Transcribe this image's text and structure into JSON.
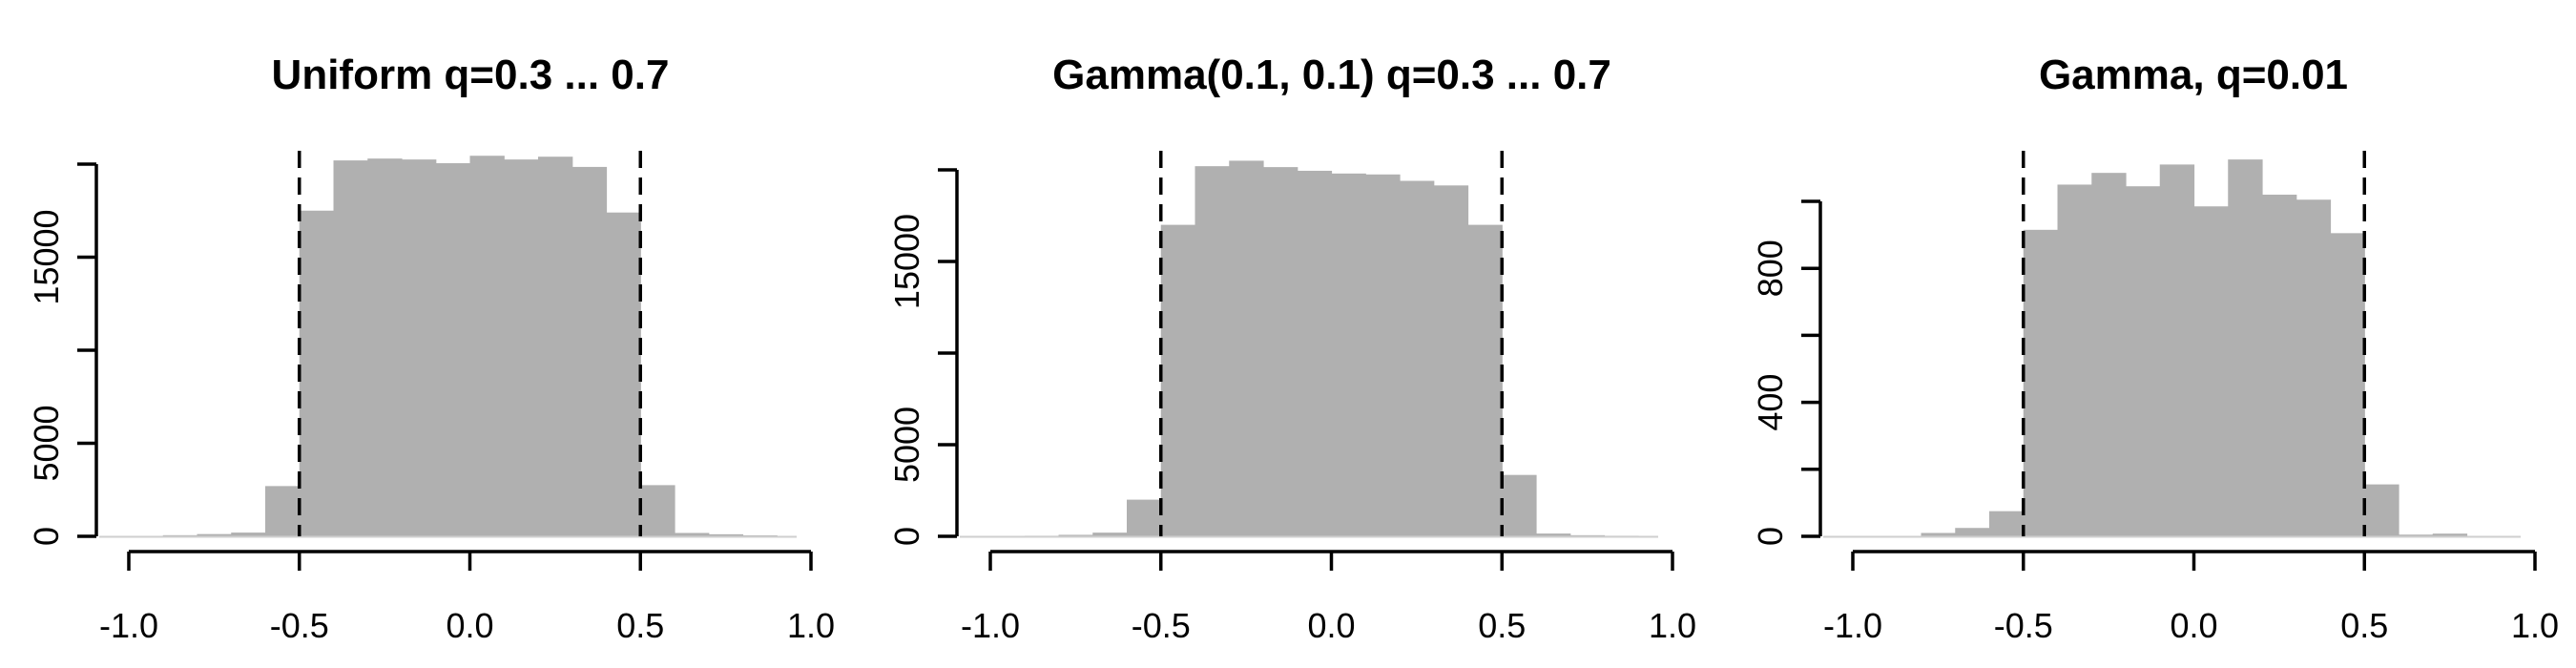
{
  "chart_data": [
    {
      "type": "bar",
      "title": "Uniform q=0.3 ... 0.7",
      "xlabel": "",
      "ylabel": "",
      "xlim": [
        -1.0,
        1.0
      ],
      "ylim": [
        0,
        20000
      ],
      "x_ticks": [
        "-1.0",
        "-0.5",
        "0.0",
        "0.5",
        "1.0"
      ],
      "y_ticks": [
        "0",
        "5000",
        "15000"
      ],
      "y_tick_values": [
        0,
        5000,
        10000,
        15000,
        20000
      ],
      "bin_width": 0.1,
      "bin_starts": [
        -1.0,
        -0.9,
        -0.8,
        -0.7,
        -0.6,
        -0.5,
        -0.4,
        -0.3,
        -0.2,
        -0.1,
        0.0,
        0.1,
        0.2,
        0.3,
        0.4,
        0.5,
        0.6,
        0.7,
        0.8,
        0.9
      ],
      "values": [
        0,
        60,
        120,
        200,
        2700,
        17500,
        20200,
        20300,
        20250,
        20050,
        20450,
        20250,
        20400,
        19850,
        17400,
        2750,
        180,
        110,
        50,
        0
      ],
      "cutoff_lines": [
        -0.5,
        0.5
      ],
      "bar_color": "#b0b0b0",
      "grid": false
    },
    {
      "type": "bar",
      "title": "Gamma(0.1, 0.1) q=0.3 ... 0.7",
      "xlabel": "",
      "ylabel": "",
      "xlim": [
        -1.0,
        1.0
      ],
      "ylim": [
        0,
        20000
      ],
      "x_ticks": [
        "-1.0",
        "-0.5",
        "0.0",
        "0.5",
        "1.0"
      ],
      "y_ticks": [
        "0",
        "5000",
        "15000"
      ],
      "y_tick_values": [
        0,
        5000,
        10000,
        15000,
        20000
      ],
      "bin_width": 0.1,
      "bin_starts": [
        -1.0,
        -0.9,
        -0.8,
        -0.7,
        -0.6,
        -0.5,
        -0.4,
        -0.3,
        -0.2,
        -0.1,
        0.0,
        0.1,
        0.2,
        0.3,
        0.4,
        0.5,
        0.6,
        0.7,
        0.8,
        0.9
      ],
      "values": [
        0,
        30,
        80,
        200,
        2000,
        17000,
        20200,
        20500,
        20150,
        19950,
        19800,
        19750,
        19400,
        19150,
        17000,
        3350,
        150,
        60,
        30,
        0
      ],
      "cutoff_lines": [
        -0.5,
        0.5
      ],
      "bar_color": "#b0b0b0",
      "grid": false
    },
    {
      "type": "bar",
      "title": "Gamma, q=0.01",
      "xlabel": "",
      "ylabel": "",
      "xlim": [
        -1.0,
        1.0
      ],
      "ylim": [
        0,
        1000
      ],
      "x_ticks": [
        "-1.0",
        "-0.5",
        "0.0",
        "0.5",
        "1.0"
      ],
      "y_ticks": [
        "0",
        "400",
        "800"
      ],
      "y_tick_values": [
        0,
        200,
        400,
        600,
        800,
        1000
      ],
      "bin_width": 0.1,
      "bin_starts": [
        -1.0,
        -0.9,
        -0.8,
        -0.7,
        -0.6,
        -0.5,
        -0.4,
        -0.3,
        -0.2,
        -0.1,
        0.0,
        0.1,
        0.2,
        0.3,
        0.4,
        0.5,
        0.6,
        0.7,
        0.8,
        0.9
      ],
      "values": [
        0,
        0,
        10,
        25,
        75,
        915,
        1050,
        1085,
        1045,
        1110,
        985,
        1125,
        1020,
        1005,
        905,
        155,
        5,
        8,
        0,
        0
      ],
      "cutoff_lines": [
        -0.5,
        0.5
      ],
      "bar_color": "#b0b0b0",
      "grid": false
    }
  ]
}
